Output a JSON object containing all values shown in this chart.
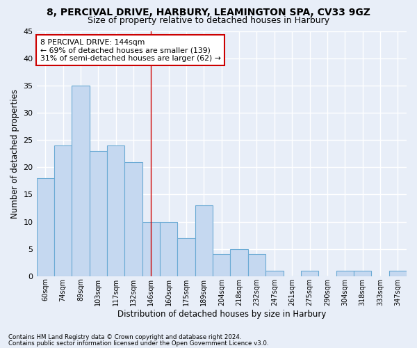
{
  "title1": "8, PERCIVAL DRIVE, HARBURY, LEAMINGTON SPA, CV33 9GZ",
  "title2": "Size of property relative to detached houses in Harbury",
  "xlabel": "Distribution of detached houses by size in Harbury",
  "ylabel": "Number of detached properties",
  "categories": [
    "60sqm",
    "74sqm",
    "89sqm",
    "103sqm",
    "117sqm",
    "132sqm",
    "146sqm",
    "160sqm",
    "175sqm",
    "189sqm",
    "204sqm",
    "218sqm",
    "232sqm",
    "247sqm",
    "261sqm",
    "275sqm",
    "290sqm",
    "304sqm",
    "318sqm",
    "333sqm",
    "347sqm"
  ],
  "values": [
    18,
    24,
    35,
    23,
    24,
    21,
    10,
    10,
    7,
    13,
    4,
    5,
    4,
    1,
    0,
    1,
    0,
    1,
    1,
    0,
    1
  ],
  "bar_color": "#c5d8f0",
  "bar_edge_color": "#6aaad4",
  "highlight_index": 6,
  "highlight_line_color": "#cc0000",
  "ylim": [
    0,
    45
  ],
  "yticks": [
    0,
    5,
    10,
    15,
    20,
    25,
    30,
    35,
    40,
    45
  ],
  "annotation_line1": "8 PERCIVAL DRIVE: 144sqm",
  "annotation_line2": "← 69% of detached houses are smaller (139)",
  "annotation_line3": "31% of semi-detached houses are larger (62) →",
  "annotation_box_color": "#ffffff",
  "annotation_box_edge_color": "#cc0000",
  "footer1": "Contains HM Land Registry data © Crown copyright and database right 2024.",
  "footer2": "Contains public sector information licensed under the Open Government Licence v3.0.",
  "background_color": "#e8eef8",
  "grid_color": "#c8d4e8",
  "title1_fontsize": 10,
  "title2_fontsize": 9,
  "xlabel_fontsize": 8.5,
  "ylabel_fontsize": 8.5,
  "tick_fontsize": 8,
  "xtick_fontsize": 7
}
